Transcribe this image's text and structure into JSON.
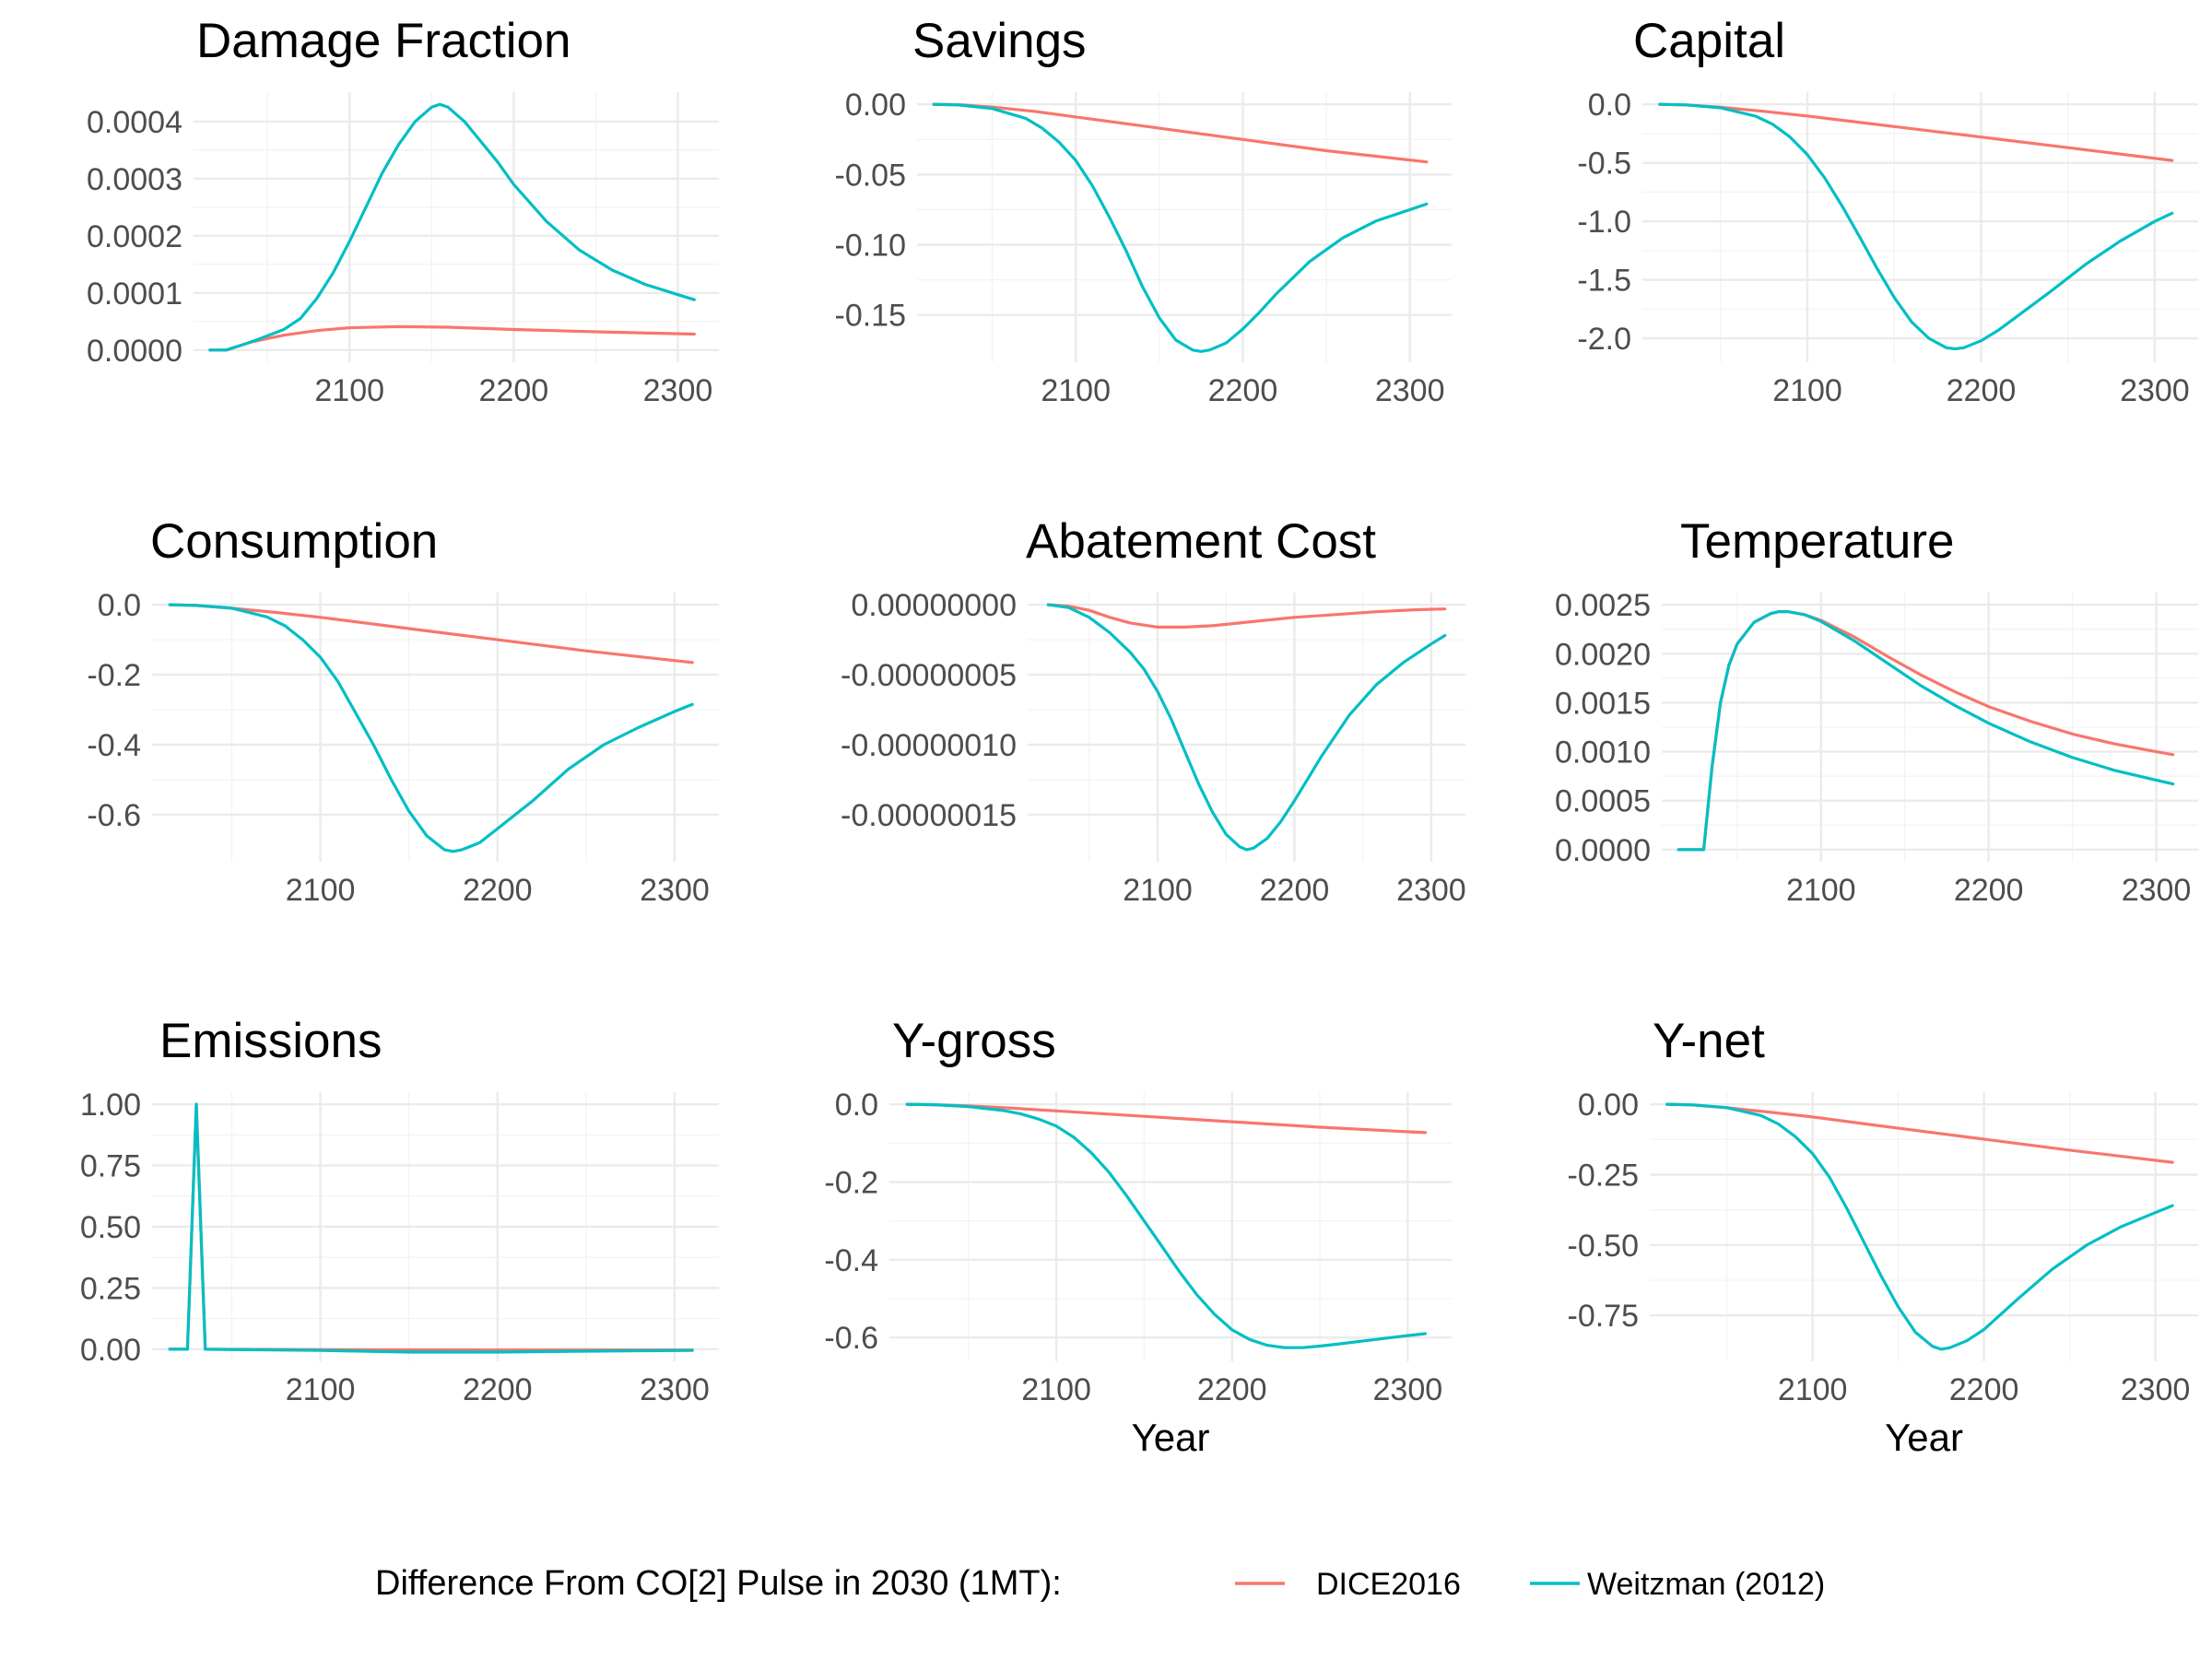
{
  "legend": {
    "title": "Difference From CO[2] Pulse in 2030 (1MT):",
    "entries": [
      {
        "name": "DICE2016",
        "color": "#F8766D"
      },
      {
        "name": "Weitzman (2012)",
        "color": "#00BFC4"
      }
    ]
  },
  "colors": {
    "dice": "#F8766D",
    "weitzman": "#00BFC4",
    "grid": "#ebebeb",
    "tick_text": "#4d4d4d"
  },
  "chart_data": [
    {
      "type": "line",
      "title": "Damage Fraction",
      "xlabel": "",
      "ylabel": "",
      "xlim": [
        2005,
        2325
      ],
      "ylim": [
        0,
        0.00043
      ],
      "xticks": [
        2100,
        2200,
        2300
      ],
      "xtick_labels": [
        "2100",
        "2200",
        "2300"
      ],
      "yticks": [
        0,
        0.0001,
        0.0002,
        0.0003,
        0.0004
      ],
      "ytick_labels": [
        "0.0000",
        "0.0001",
        "0.0002",
        "0.0003",
        "0.0004"
      ],
      "grid": true,
      "series": [
        {
          "name": "DICE2016",
          "x": [
            2015,
            2025,
            2040,
            2060,
            2080,
            2100,
            2130,
            2160,
            2200,
            2250,
            2310
          ],
          "y": [
            0,
            0,
            1.4e-05,
            2.6e-05,
            3.4e-05,
            3.9e-05,
            4.1e-05,
            4e-05,
            3.6e-05,
            3.2e-05,
            2.8e-05
          ]
        },
        {
          "name": "Weitzman (2012)",
          "x": [
            2015,
            2025,
            2040,
            2060,
            2070,
            2080,
            2090,
            2100,
            2110,
            2120,
            2130,
            2140,
            2150,
            2155,
            2160,
            2170,
            2180,
            2190,
            2200,
            2220,
            2240,
            2260,
            2280,
            2300,
            2310
          ],
          "y": [
            0,
            0,
            1.4e-05,
            3.6e-05,
            5.5e-05,
            9e-05,
            0.000135,
            0.00019,
            0.00025,
            0.00031,
            0.00036,
            0.0004,
            0.000425,
            0.00043,
            0.000425,
            0.0004,
            0.000365,
            0.00033,
            0.00029,
            0.000225,
            0.000175,
            0.00014,
            0.000115,
            9.7e-05,
            8.8e-05
          ]
        }
      ]
    },
    {
      "type": "line",
      "title": "Savings",
      "xlabel": "",
      "ylabel": "",
      "xlim": [
        2005,
        2325
      ],
      "ylim": [
        -0.175,
        0
      ],
      "xticks": [
        2100,
        2200,
        2300
      ],
      "xtick_labels": [
        "2100",
        "2200",
        "2300"
      ],
      "yticks": [
        0,
        -0.05,
        -0.1,
        -0.15
      ],
      "ytick_labels": [
        "0.00",
        "-0.05",
        "-0.10",
        "-0.15"
      ],
      "grid": true,
      "series": [
        {
          "name": "DICE2016",
          "x": [
            2015,
            2030,
            2050,
            2075,
            2100,
            2150,
            2200,
            2250,
            2310
          ],
          "y": [
            0,
            -0.0003,
            -0.002,
            -0.005,
            -0.009,
            -0.017,
            -0.025,
            -0.033,
            -0.041
          ]
        },
        {
          "name": "Weitzman (2012)",
          "x": [
            2015,
            2030,
            2050,
            2070,
            2080,
            2090,
            2100,
            2110,
            2120,
            2130,
            2140,
            2150,
            2160,
            2170,
            2175,
            2180,
            2190,
            2200,
            2210,
            2220,
            2240,
            2260,
            2280,
            2300,
            2310
          ],
          "y": [
            0,
            -0.0005,
            -0.003,
            -0.01,
            -0.017,
            -0.027,
            -0.04,
            -0.058,
            -0.08,
            -0.104,
            -0.13,
            -0.152,
            -0.168,
            -0.175,
            -0.176,
            -0.175,
            -0.17,
            -0.16,
            -0.148,
            -0.135,
            -0.112,
            -0.095,
            -0.083,
            -0.075,
            -0.071
          ]
        }
      ]
    },
    {
      "type": "line",
      "title": "Capital",
      "xlabel": "",
      "ylabel": "",
      "xlim": [
        2005,
        2325
      ],
      "ylim": [
        -2.1,
        0
      ],
      "xticks": [
        2100,
        2200,
        2300
      ],
      "xtick_labels": [
        "2100",
        "2200",
        "2300"
      ],
      "yticks": [
        0,
        -0.5,
        -1,
        -1.5,
        -2
      ],
      "ytick_labels": [
        "0.0",
        "-0.5",
        "-1.0",
        "-1.5",
        "-2.0"
      ],
      "grid": true,
      "series": [
        {
          "name": "DICE2016",
          "x": [
            2015,
            2030,
            2050,
            2075,
            2100,
            2150,
            2200,
            2250,
            2310
          ],
          "y": [
            0,
            -0.005,
            -0.025,
            -0.06,
            -0.1,
            -0.19,
            -0.28,
            -0.37,
            -0.48
          ]
        },
        {
          "name": "Weitzman (2012)",
          "x": [
            2015,
            2030,
            2050,
            2070,
            2080,
            2090,
            2100,
            2110,
            2120,
            2130,
            2140,
            2150,
            2160,
            2170,
            2180,
            2185,
            2190,
            2200,
            2210,
            2220,
            2240,
            2260,
            2280,
            2300,
            2310
          ],
          "y": [
            0,
            -0.005,
            -0.03,
            -0.1,
            -0.17,
            -0.28,
            -0.43,
            -0.63,
            -0.87,
            -1.13,
            -1.4,
            -1.65,
            -1.86,
            -2.0,
            -2.08,
            -2.09,
            -2.08,
            -2.02,
            -1.93,
            -1.82,
            -1.6,
            -1.37,
            -1.17,
            -1.0,
            -0.93
          ]
        }
      ]
    },
    {
      "type": "line",
      "title": "Consumption",
      "xlabel": "",
      "ylabel": "",
      "xlim": [
        2005,
        2325
      ],
      "ylim": [
        -0.7,
        0
      ],
      "xticks": [
        2100,
        2200,
        2300
      ],
      "xtick_labels": [
        "2100",
        "2200",
        "2300"
      ],
      "yticks": [
        0,
        -0.2,
        -0.4,
        -0.6
      ],
      "ytick_labels": [
        "0.0",
        "-0.2",
        "-0.4",
        "-0.6"
      ],
      "grid": true,
      "series": [
        {
          "name": "DICE2016",
          "x": [
            2015,
            2030,
            2050,
            2075,
            2100,
            2150,
            2200,
            2250,
            2310
          ],
          "y": [
            0,
            -0.002,
            -0.01,
            -0.022,
            -0.036,
            -0.068,
            -0.1,
            -0.132,
            -0.165
          ]
        },
        {
          "name": "Weitzman (2012)",
          "x": [
            2015,
            2030,
            2050,
            2070,
            2080,
            2090,
            2100,
            2110,
            2120,
            2130,
            2140,
            2150,
            2160,
            2170,
            2175,
            2180,
            2190,
            2200,
            2210,
            2220,
            2240,
            2260,
            2280,
            2300,
            2310
          ],
          "y": [
            0,
            -0.002,
            -0.01,
            -0.035,
            -0.06,
            -0.1,
            -0.15,
            -0.22,
            -0.31,
            -0.4,
            -0.5,
            -0.59,
            -0.66,
            -0.7,
            -0.705,
            -0.7,
            -0.68,
            -0.64,
            -0.6,
            -0.56,
            -0.47,
            -0.4,
            -0.35,
            -0.305,
            -0.285
          ]
        }
      ]
    },
    {
      "type": "line",
      "title": "Abatement Cost",
      "xlabel": "",
      "ylabel": "",
      "xlim": [
        2005,
        2325
      ],
      "ylim": [
        -1.75e-07,
        0
      ],
      "xticks": [
        2100,
        2200,
        2300
      ],
      "xtick_labels": [
        "2100",
        "2200",
        "2300"
      ],
      "yticks": [
        0,
        -5e-08,
        -1e-07,
        -1.5e-07
      ],
      "ytick_labels": [
        "0.00000000",
        "-0.00000005",
        "-0.00000010",
        "-0.00000015"
      ],
      "grid": true,
      "series": [
        {
          "name": "DICE2016",
          "x": [
            2020,
            2035,
            2050,
            2065,
            2080,
            2100,
            2120,
            2140,
            2160,
            2180,
            2200,
            2230,
            2260,
            2290,
            2310
          ],
          "y": [
            0,
            -1e-09,
            -4e-09,
            -9e-09,
            -1.3e-08,
            -1.6e-08,
            -1.6e-08,
            -1.5e-08,
            -1.3e-08,
            -1.1e-08,
            -9e-09,
            -7e-09,
            -5e-09,
            -3.5e-09,
            -3e-09
          ]
        },
        {
          "name": "Weitzman (2012)",
          "x": [
            2020,
            2035,
            2050,
            2065,
            2080,
            2090,
            2100,
            2110,
            2120,
            2130,
            2140,
            2150,
            2160,
            2165,
            2170,
            2180,
            2190,
            2200,
            2210,
            2220,
            2240,
            2260,
            2280,
            2300,
            2310
          ],
          "y": [
            0,
            -2e-09,
            -9e-09,
            -2e-08,
            -3.4e-08,
            -4.6e-08,
            -6.2e-08,
            -8.2e-08,
            -1.05e-07,
            -1.28e-07,
            -1.48e-07,
            -1.64e-07,
            -1.73e-07,
            -1.75e-07,
            -1.74e-07,
            -1.67e-07,
            -1.55e-07,
            -1.4e-07,
            -1.24e-07,
            -1.08e-07,
            -7.9e-08,
            -5.7e-08,
            -4.1e-08,
            -2.8e-08,
            -2.2e-08
          ]
        }
      ]
    },
    {
      "type": "line",
      "title": "Temperature",
      "xlabel": "",
      "ylabel": "",
      "xlim": [
        2005,
        2325
      ],
      "ylim": [
        0,
        0.0025
      ],
      "xticks": [
        2100,
        2200,
        2300
      ],
      "xtick_labels": [
        "2100",
        "2200",
        "2300"
      ],
      "yticks": [
        0,
        0.0005,
        0.001,
        0.0015,
        0.002,
        0.0025
      ],
      "ytick_labels": [
        "0.0000",
        "0.0005",
        "0.0010",
        "0.0015",
        "0.0020",
        "0.0025"
      ],
      "grid": true,
      "series": [
        {
          "name": "DICE2016",
          "x": [
            2015,
            2025,
            2030,
            2035,
            2040,
            2045,
            2050,
            2060,
            2070,
            2075,
            2080,
            2090,
            2100,
            2120,
            2140,
            2160,
            2180,
            2200,
            2225,
            2250,
            2275,
            2300,
            2310
          ],
          "y": [
            0,
            0,
            0,
            0.00085,
            0.0015,
            0.00188,
            0.0021,
            0.00232,
            0.00241,
            0.00243,
            0.00243,
            0.0024,
            0.00234,
            0.00217,
            0.00197,
            0.00178,
            0.00161,
            0.00146,
            0.00131,
            0.00118,
            0.00108,
            0.001,
            0.00097
          ]
        },
        {
          "name": "Weitzman (2012)",
          "x": [
            2015,
            2025,
            2030,
            2035,
            2040,
            2045,
            2050,
            2060,
            2070,
            2075,
            2080,
            2090,
            2100,
            2120,
            2140,
            2160,
            2180,
            2200,
            2225,
            2250,
            2275,
            2300,
            2310
          ],
          "y": [
            0,
            0,
            0,
            0.00085,
            0.0015,
            0.00188,
            0.0021,
            0.00232,
            0.00241,
            0.00243,
            0.00243,
            0.0024,
            0.00233,
            0.00213,
            0.0019,
            0.00167,
            0.00147,
            0.00129,
            0.0011,
            0.00094,
            0.00081,
            0.00071,
            0.00067
          ]
        }
      ]
    },
    {
      "type": "line",
      "title": "Emissions",
      "xlabel": "",
      "ylabel": "",
      "xlim": [
        2005,
        2325
      ],
      "ylim": [
        0,
        1.0
      ],
      "xticks": [
        2100,
        2200,
        2300
      ],
      "xtick_labels": [
        "2100",
        "2200",
        "2300"
      ],
      "yticks": [
        0,
        0.25,
        0.5,
        0.75,
        1.0
      ],
      "ytick_labels": [
        "0.00",
        "0.25",
        "0.50",
        "0.75",
        "1.00"
      ],
      "grid": true,
      "series": [
        {
          "name": "DICE2016",
          "x": [
            2015,
            2025,
            2030,
            2035,
            2100,
            2200,
            2310
          ],
          "y": [
            0,
            0,
            1.0,
            0,
            -0.002,
            -0.003,
            -0.003
          ]
        },
        {
          "name": "Weitzman (2012)",
          "x": [
            2015,
            2025,
            2030,
            2035,
            2100,
            2150,
            2200,
            2250,
            2310
          ],
          "y": [
            0,
            0,
            1.0,
            0,
            -0.005,
            -0.012,
            -0.012,
            -0.008,
            -0.005
          ]
        }
      ]
    },
    {
      "type": "line",
      "title": "Y-gross",
      "xlabel": "Year",
      "ylabel": "",
      "xlim": [
        2005,
        2325
      ],
      "ylim": [
        -0.63,
        0
      ],
      "xticks": [
        2100,
        2200,
        2300
      ],
      "xtick_labels": [
        "2100",
        "2200",
        "2300"
      ],
      "yticks": [
        0,
        -0.2,
        -0.4,
        -0.6
      ],
      "ytick_labels": [
        "0.0",
        "-0.2",
        "-0.4",
        "-0.6"
      ],
      "grid": true,
      "series": [
        {
          "name": "DICE2016",
          "x": [
            2015,
            2030,
            2050,
            2075,
            2100,
            2150,
            2200,
            2250,
            2310
          ],
          "y": [
            0,
            -0.001,
            -0.004,
            -0.01,
            -0.017,
            -0.031,
            -0.045,
            -0.059,
            -0.073
          ]
        },
        {
          "name": "Weitzman (2012)",
          "x": [
            2015,
            2030,
            2050,
            2070,
            2080,
            2090,
            2100,
            2110,
            2120,
            2130,
            2140,
            2150,
            2160,
            2170,
            2180,
            2190,
            2200,
            2210,
            2220,
            2230,
            2240,
            2250,
            2260,
            2280,
            2300,
            2310
          ],
          "y": [
            0,
            -0.001,
            -0.006,
            -0.016,
            -0.025,
            -0.038,
            -0.056,
            -0.085,
            -0.125,
            -0.175,
            -0.235,
            -0.3,
            -0.365,
            -0.43,
            -0.49,
            -0.54,
            -0.58,
            -0.605,
            -0.62,
            -0.626,
            -0.626,
            -0.622,
            -0.617,
            -0.606,
            -0.595,
            -0.59
          ]
        }
      ]
    },
    {
      "type": "line",
      "title": "Y-net",
      "xlabel": "Year",
      "ylabel": "",
      "xlim": [
        2005,
        2325
      ],
      "ylim": [
        -0.87,
        0
      ],
      "xticks": [
        2100,
        2200,
        2300
      ],
      "xtick_labels": [
        "2100",
        "2200",
        "2300"
      ],
      "yticks": [
        0,
        -0.25,
        -0.5,
        -0.75
      ],
      "ytick_labels": [
        "0.00",
        "-0.25",
        "-0.50",
        "-0.75"
      ],
      "grid": true,
      "series": [
        {
          "name": "DICE2016",
          "x": [
            2015,
            2030,
            2050,
            2075,
            2100,
            2150,
            2200,
            2250,
            2310
          ],
          "y": [
            0,
            -0.002,
            -0.012,
            -0.028,
            -0.045,
            -0.085,
            -0.124,
            -0.163,
            -0.206
          ]
        },
        {
          "name": "Weitzman (2012)",
          "x": [
            2015,
            2030,
            2050,
            2070,
            2080,
            2090,
            2100,
            2110,
            2120,
            2130,
            2140,
            2150,
            2160,
            2170,
            2175,
            2180,
            2190,
            2200,
            2210,
            2220,
            2240,
            2260,
            2280,
            2300,
            2310
          ],
          "y": [
            0,
            -0.002,
            -0.012,
            -0.04,
            -0.07,
            -0.115,
            -0.175,
            -0.26,
            -0.37,
            -0.49,
            -0.61,
            -0.72,
            -0.81,
            -0.86,
            -0.87,
            -0.865,
            -0.84,
            -0.8,
            -0.745,
            -0.69,
            -0.585,
            -0.5,
            -0.435,
            -0.385,
            -0.36
          ]
        }
      ]
    }
  ]
}
